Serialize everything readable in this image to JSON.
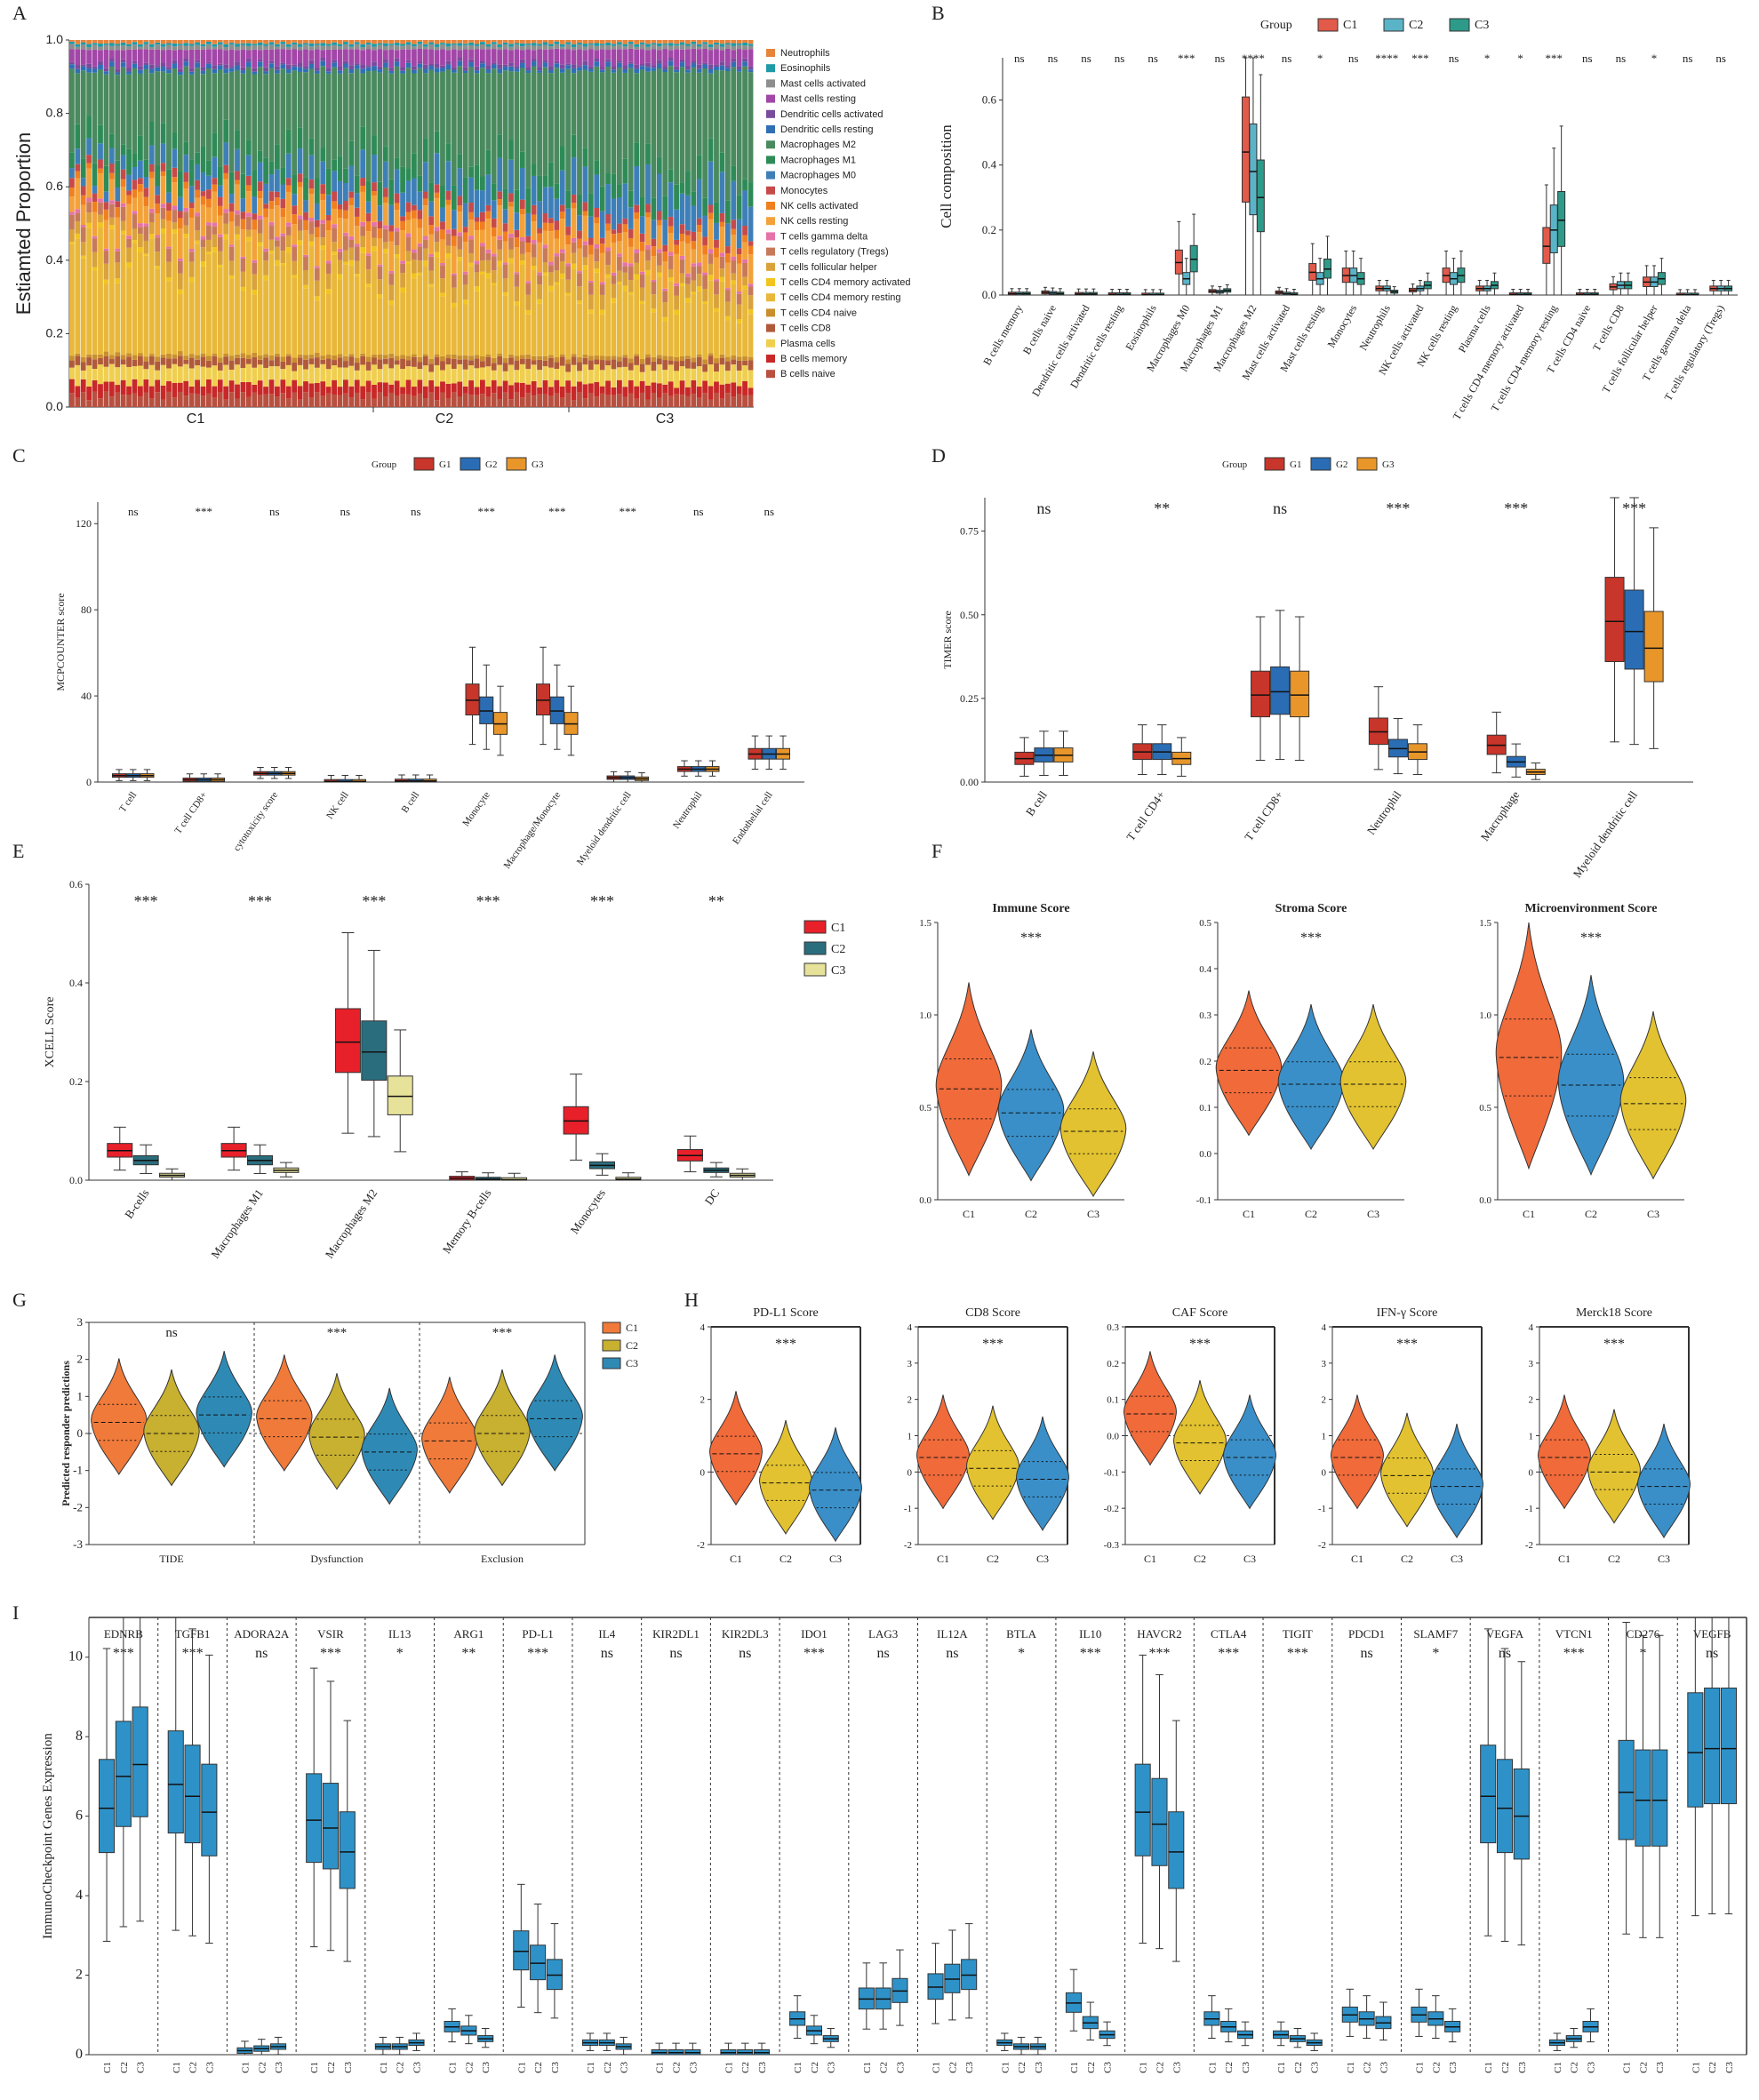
{
  "figure": {
    "panel_labels": [
      "A",
      "B",
      "C",
      "D",
      "E",
      "F",
      "G",
      "H",
      "I"
    ]
  },
  "chart_data": [
    {
      "panel": "A",
      "type": "bar",
      "stacked": true,
      "ylabel": "Estiamted Proportion",
      "yticks": [
        "0.0",
        "0.2",
        "0.4",
        "0.6",
        "0.8",
        "1.0"
      ],
      "groups": [
        "C1",
        "C2",
        "C3"
      ],
      "legend": [
        "Neutrophils",
        "Eosinophils",
        "Mast cells activated",
        "Mast cells resting",
        "Dendritic cells activated",
        "Dendritic cells resting",
        "Macrophages M2",
        "Macrophages M1",
        "Macrophages M0",
        "Monocytes",
        "NK cells activated",
        "NK cells resting",
        "T cells gamma delta",
        "T cells regulatory (Tregs)",
        "T cells follicular helper",
        "T cells CD4 memory activated",
        "T cells CD4 memory resting",
        "T cells CD4 naive",
        "T cells CD8",
        "Plasma cells",
        "B cells memory",
        "B cells naive"
      ],
      "colors": [
        "#e8833a",
        "#1f9aa6",
        "#8e8e8e",
        "#a246a8",
        "#7a4b9c",
        "#2f6fb3",
        "#4a8a5e",
        "#2e8b57",
        "#3f7fb8",
        "#c64a4a",
        "#f07f1f",
        "#f3a23a",
        "#e573a8",
        "#c77a5a",
        "#d9a23a",
        "#f2c420",
        "#e9b83a",
        "#c98f2e",
        "#b05a3a",
        "#f0cf50",
        "#c82828",
        "#b85040"
      ]
    },
    {
      "panel": "B",
      "type": "box",
      "legend_title": "Group",
      "groups": [
        "C1",
        "C2",
        "C3"
      ],
      "colors": [
        "#e25a4a",
        "#5ab4c8",
        "#2e9a8a"
      ],
      "ylabel": "Cell composition",
      "yticks": [
        "0.0",
        "0.2",
        "0.4",
        "0.6"
      ],
      "ylim": [
        0,
        0.73
      ],
      "categories": [
        "B cells memory",
        "B cells naive",
        "Dendritic cells activated",
        "Dendritic cells resting",
        "Eosinophils",
        "Macrophages M0",
        "Macrophages M1",
        "Macrophages M2",
        "Mast cells activated",
        "Mast cells resting",
        "Monocytes",
        "Neutrophils",
        "NK cells activated",
        "NK cells resting",
        "Plasma cells",
        "T cells CD4 memory activated",
        "T cells CD4 memory resting",
        "T cells CD4 naive",
        "T cells CD8",
        "T cells follicular helper",
        "T cells gamma delta",
        "T cells regulatory (Tregs)"
      ],
      "significance": [
        "ns",
        "ns",
        "ns",
        "ns",
        "ns",
        "***",
        "ns",
        "****",
        "ns",
        "*",
        "ns",
        "****",
        "***",
        "ns",
        "*",
        "*",
        "***",
        "ns",
        "ns",
        "*",
        "ns",
        "ns"
      ],
      "medians": [
        [
          0.004,
          0.004,
          0.004
        ],
        [
          0.008,
          0.006,
          0.004
        ],
        [
          0.003,
          0.003,
          0.003
        ],
        [
          0.002,
          0.002,
          0.002
        ],
        [
          0.001,
          0.001,
          0.001
        ],
        [
          0.1,
          0.05,
          0.11
        ],
        [
          0.012,
          0.01,
          0.014
        ],
        [
          0.44,
          0.38,
          0.3
        ],
        [
          0.008,
          0.004,
          0.002
        ],
        [
          0.07,
          0.05,
          0.08
        ],
        [
          0.06,
          0.06,
          0.05
        ],
        [
          0.02,
          0.02,
          0.01
        ],
        [
          0.015,
          0.02,
          0.03
        ],
        [
          0.06,
          0.05,
          0.06
        ],
        [
          0.02,
          0.02,
          0.03
        ],
        [
          0.002,
          0.002,
          0.002
        ],
        [
          0.15,
          0.2,
          0.23
        ],
        [
          0.002,
          0.002,
          0.002
        ],
        [
          0.025,
          0.03,
          0.03
        ],
        [
          0.04,
          0.04,
          0.05
        ],
        [
          0.001,
          0.001,
          0.001
        ],
        [
          0.02,
          0.02,
          0.02
        ]
      ]
    },
    {
      "panel": "C",
      "type": "box",
      "legend_title": "Group",
      "groups": [
        "G1",
        "G2",
        "G3"
      ],
      "colors": [
        "#c8352a",
        "#2a6db5",
        "#e8962a"
      ],
      "ylabel": "MCPCOUNTER score",
      "yticks": [
        "0",
        "40",
        "80",
        "120"
      ],
      "ylim": [
        0,
        130
      ],
      "categories": [
        "T cell",
        "T cell CD8+",
        "cytotoxicity score",
        "NK cell",
        "B cell",
        "Monocyte",
        "Macrophage/Monocyte",
        "Myeloid dendritic cell",
        "Neutrophil",
        "Endothelial cell"
      ],
      "significance": [
        "ns",
        "***",
        "ns",
        "ns",
        "ns",
        "***",
        "***",
        "***",
        "ns",
        "ns"
      ],
      "medians": [
        [
          3,
          3,
          3
        ],
        [
          1,
          1,
          1
        ],
        [
          4,
          4,
          4
        ],
        [
          0.3,
          0.3,
          0.3
        ],
        [
          0.5,
          0.5,
          0.5
        ],
        [
          38,
          33,
          27
        ],
        [
          38,
          33,
          27
        ],
        [
          2,
          2,
          1.5
        ],
        [
          6,
          6,
          6
        ],
        [
          13,
          13,
          13
        ]
      ]
    },
    {
      "panel": "D",
      "type": "box",
      "legend_title": "Group",
      "groups": [
        "G1",
        "G2",
        "G3"
      ],
      "colors": [
        "#c8352a",
        "#2a6db5",
        "#e8962a"
      ],
      "ylabel": "TIMER score",
      "yticks": [
        "0.00",
        "0.25",
        "0.50",
        "0.75"
      ],
      "ylim": [
        0,
        0.85
      ],
      "categories": [
        "B cell",
        "T cell CD4+",
        "T cell CD8+",
        "Neutrophil",
        "Macrophage",
        "Myeloid dendritic cell"
      ],
      "significance": [
        "ns",
        "**",
        "ns",
        "***",
        "***",
        "***"
      ],
      "medians": [
        [
          0.07,
          0.08,
          0.08
        ],
        [
          0.09,
          0.09,
          0.07
        ],
        [
          0.26,
          0.27,
          0.26
        ],
        [
          0.15,
          0.1,
          0.09
        ],
        [
          0.11,
          0.06,
          0.03
        ],
        [
          0.48,
          0.45,
          0.4
        ]
      ]
    },
    {
      "panel": "E",
      "type": "box",
      "groups": [
        "C1",
        "C2",
        "C3"
      ],
      "colors": [
        "#e8202a",
        "#2a6e7e",
        "#e6e29a"
      ],
      "ylabel": "XCELL Score",
      "yticks": [
        "0.0",
        "0.2",
        "0.4",
        "0.6"
      ],
      "ylim": [
        0,
        0.6
      ],
      "categories": [
        "B-cells",
        "Macrophages M1",
        "Macrophages M2",
        "Memory B-cells",
        "Monocytes",
        "DC"
      ],
      "significance": [
        "***",
        "***",
        "***",
        "***",
        "***",
        "**"
      ],
      "medians": [
        [
          0.06,
          0.04,
          0.01
        ],
        [
          0.06,
          0.04,
          0.02
        ],
        [
          0.28,
          0.26,
          0.17
        ],
        [
          0.004,
          0.002,
          0.001
        ],
        [
          0.12,
          0.03,
          0.002
        ],
        [
          0.05,
          0.02,
          0.01
        ]
      ]
    },
    {
      "panel": "F",
      "type": "violin",
      "groups": [
        "C1",
        "C2",
        "C3"
      ],
      "colors": [
        "#f06a3a",
        "#3a8fc8",
        "#e2c230"
      ],
      "subplots": [
        {
          "title": "Immune Score",
          "sig": "***",
          "yticks": [
            "0.0",
            "0.5",
            "1.0",
            "1.5"
          ],
          "ylim": [
            0,
            1.5
          ],
          "medians": [
            0.6,
            0.47,
            0.37
          ]
        },
        {
          "title": "Stroma Score",
          "sig": "***",
          "yticks": [
            "-0.1",
            "0.0",
            "0.1",
            "0.2",
            "0.3",
            "0.4",
            "0.5"
          ],
          "ylim": [
            -0.1,
            0.5
          ],
          "medians": [
            0.18,
            0.15,
            0.15
          ]
        },
        {
          "title": "Microenvironment Score",
          "sig": "***",
          "yticks": [
            "0.0",
            "0.5",
            "1.0",
            "1.5"
          ],
          "ylim": [
            0,
            1.5
          ],
          "medians": [
            0.77,
            0.62,
            0.52
          ]
        }
      ]
    },
    {
      "panel": "G",
      "type": "violin",
      "groups": [
        "C1",
        "C2",
        "C3"
      ],
      "colors": [
        "#f07a3a",
        "#c8b030",
        "#2e8ab5"
      ],
      "ylabel": "Predicted responder predictions",
      "yticks": [
        "-3",
        "-2",
        "-1",
        "0",
        "1",
        "2",
        "3"
      ],
      "ylim": [
        -3,
        3
      ],
      "categories": [
        "TIDE",
        "Dysfunction",
        "Exclusion"
      ],
      "significance": [
        "ns",
        "***",
        "***"
      ],
      "medians": [
        [
          0.3,
          0.0,
          0.5
        ],
        [
          0.4,
          -0.1,
          -0.5
        ],
        [
          -0.2,
          0.0,
          0.4
        ]
      ]
    },
    {
      "panel": "H",
      "type": "violin",
      "groups": [
        "C1",
        "C2",
        "C3"
      ],
      "colors": [
        "#f06a3a",
        "#e2c230",
        "#3a8fc8"
      ],
      "subplots": [
        {
          "title": "PD-L1 Score",
          "sig": "***",
          "yticks": [
            "-2",
            "0",
            "2",
            "4"
          ],
          "ylim": [
            -2,
            4
          ],
          "medians": [
            0.5,
            -0.3,
            -0.5
          ]
        },
        {
          "title": "CD8 Score",
          "sig": "***",
          "yticks": [
            "-2",
            "-1",
            "0",
            "1",
            "2",
            "3",
            "4"
          ],
          "ylim": [
            -2,
            4
          ],
          "medians": [
            0.4,
            0.1,
            -0.2
          ]
        },
        {
          "title": "CAF Score",
          "sig": "***",
          "yticks": [
            "-0.3",
            "-0.2",
            "-0.1",
            "0.0",
            "0.1",
            "0.2",
            "0.3"
          ],
          "ylim": [
            -0.3,
            0.3
          ],
          "medians": [
            0.06,
            -0.02,
            -0.06
          ]
        },
        {
          "title": "IFN-γ Score",
          "sig": "***",
          "yticks": [
            "-2",
            "-1",
            "0",
            "1",
            "2",
            "3",
            "4"
          ],
          "ylim": [
            -2,
            4
          ],
          "medians": [
            0.4,
            -0.1,
            -0.4
          ]
        },
        {
          "title": "Merck18 Score",
          "sig": "***",
          "yticks": [
            "-2",
            "-1",
            "0",
            "1",
            "2",
            "3",
            "4"
          ],
          "ylim": [
            -2,
            4
          ],
          "medians": [
            0.4,
            0.0,
            -0.4
          ]
        }
      ]
    },
    {
      "panel": "I",
      "type": "box",
      "groups": [
        "C1",
        "C2",
        "C3"
      ],
      "color": "#2e92c8",
      "ylabel": "ImmunoCheckpoint Genes Expression",
      "yticks": [
        "0",
        "2",
        "4",
        "6",
        "8",
        "10"
      ],
      "ylim": [
        0,
        11
      ],
      "genes": [
        "EDNRB",
        "TGFB1",
        "ADORA2A",
        "VSIR",
        "IL13",
        "ARG1",
        "PD-L1",
        "IL4",
        "KIR2DL1",
        "KIR2DL3",
        "IDO1",
        "LAG3",
        "IL12A",
        "BTLA",
        "IL10",
        "HAVCR2",
        "CTLA4",
        "TIGIT",
        "PDCD1",
        "SLAMF7",
        "VEGFA",
        "VTCN1",
        "CD276",
        "VEGFB"
      ],
      "significance": [
        "***",
        "***",
        "ns",
        "***",
        "*",
        "**",
        "***",
        "ns",
        "ns",
        "ns",
        "***",
        "ns",
        "ns",
        "*",
        "***",
        "***",
        "***",
        "***",
        "ns",
        "*",
        "ns",
        "***",
        "*",
        "ns"
      ],
      "medians": [
        [
          6.2,
          7.0,
          7.3
        ],
        [
          6.8,
          6.5,
          6.1
        ],
        [
          0.1,
          0.15,
          0.2
        ],
        [
          5.9,
          5.7,
          5.1
        ],
        [
          0.2,
          0.2,
          0.3
        ],
        [
          0.7,
          0.6,
          0.4
        ],
        [
          2.6,
          2.3,
          2.0
        ],
        [
          0.3,
          0.3,
          0.2
        ],
        [
          0.05,
          0.05,
          0.05
        ],
        [
          0.05,
          0.05,
          0.05
        ],
        [
          0.9,
          0.6,
          0.4
        ],
        [
          1.4,
          1.4,
          1.6
        ],
        [
          1.7,
          1.9,
          2.0
        ],
        [
          0.3,
          0.2,
          0.2
        ],
        [
          1.3,
          0.8,
          0.5
        ],
        [
          6.1,
          5.8,
          5.1
        ],
        [
          0.9,
          0.7,
          0.5
        ],
        [
          0.5,
          0.4,
          0.3
        ],
        [
          1.0,
          0.9,
          0.8
        ],
        [
          1.0,
          0.9,
          0.7
        ],
        [
          6.5,
          6.2,
          6.0
        ],
        [
          0.3,
          0.4,
          0.7
        ],
        [
          6.6,
          6.4,
          6.4
        ],
        [
          7.6,
          7.7,
          7.7
        ]
      ]
    }
  ]
}
